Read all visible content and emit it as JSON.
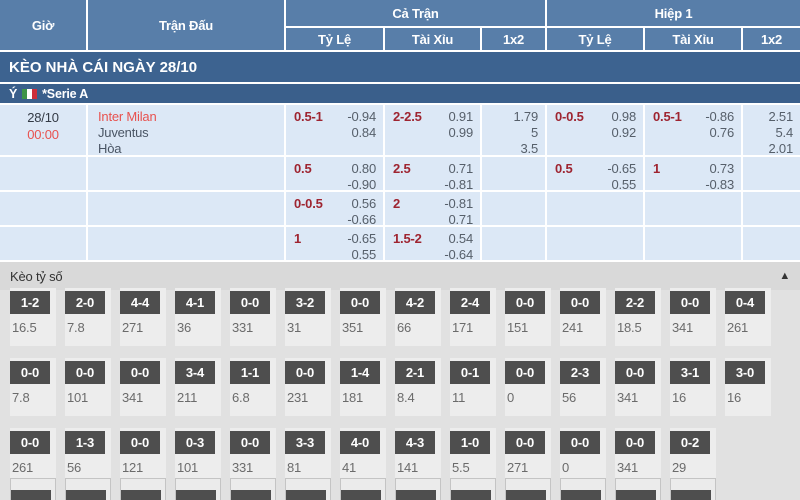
{
  "colors": {
    "header_blue": "#587ea9",
    "band_blue": "#3d6390",
    "row_bg": "#dce8f6",
    "odds_label_red": "#9e2430",
    "team_red": "#e8524f",
    "score_box_dark": "#4e4e4e"
  },
  "table": {
    "headers": {
      "gio": "Giờ",
      "tran_dau": "Trận Đấu",
      "ca_tran": "Cả Trận",
      "hiep_1": "Hiệp 1",
      "ty_le": "Tỷ Lệ",
      "tai_xiu": "Tài Xỉu",
      "one_x_two": "1x2"
    },
    "section_title": "KÈO NHÀ CÁI NGÀY 28/10",
    "league": {
      "country": "Ý",
      "flag": "italy",
      "name": "*Serie A"
    },
    "match": {
      "date": "28/10",
      "time": "00:00",
      "home": "Inter Milan",
      "away": "Juventus",
      "draw_label": "Hòa"
    },
    "odds_rows": [
      {
        "ft_hc": "0.5-1",
        "ft_hc_v1": "-0.94",
        "ft_hc_v2": "0.84",
        "ft_ou": "2-2.5",
        "ft_ou_v1": "0.91",
        "ft_ou_v2": "0.99",
        "ft_1x2": [
          "1.79",
          "5",
          "3.5"
        ],
        "h1_hc": "0-0.5",
        "h1_hc_v1": "0.98",
        "h1_hc_v2": "0.92",
        "h1_ou": "0.5-1",
        "h1_ou_v1": "-0.86",
        "h1_ou_v2": "0.76",
        "h1_1x2": [
          "2.51",
          "5.4",
          "2.01"
        ]
      },
      {
        "ft_hc": "0.5",
        "ft_hc_v1": "0.80",
        "ft_hc_v2": "-0.90",
        "ft_ou": "2.5",
        "ft_ou_v1": "0.71",
        "ft_ou_v2": "-0.81",
        "ft_1x2": [],
        "h1_hc": "0.5",
        "h1_hc_v1": "-0.65",
        "h1_hc_v2": "0.55",
        "h1_ou": "1",
        "h1_ou_v1": "0.73",
        "h1_ou_v2": "-0.83",
        "h1_1x2": []
      },
      {
        "ft_hc": "0-0.5",
        "ft_hc_v1": "0.56",
        "ft_hc_v2": "-0.66",
        "ft_ou": "2",
        "ft_ou_v1": "-0.81",
        "ft_ou_v2": "0.71",
        "ft_1x2": [],
        "h1_hc": "",
        "h1_hc_v1": "",
        "h1_hc_v2": "",
        "h1_ou": "",
        "h1_ou_v1": "",
        "h1_ou_v2": "",
        "h1_1x2": []
      },
      {
        "ft_hc": "1",
        "ft_hc_v1": "-0.65",
        "ft_hc_v2": "0.55",
        "ft_ou": "1.5-2",
        "ft_ou_v1": "0.54",
        "ft_ou_v2": "-0.64",
        "ft_1x2": [],
        "h1_hc": "",
        "h1_hc_v1": "",
        "h1_hc_v2": "",
        "h1_ou": "",
        "h1_ou_v1": "",
        "h1_ou_v2": "",
        "h1_1x2": []
      }
    ]
  },
  "score_section": {
    "title": "Kèo tỷ số",
    "collapse_icon": "▲",
    "rows": [
      [
        {
          "score": "1-2",
          "odds": "16.5"
        },
        {
          "score": "2-0",
          "odds": "7.8"
        },
        {
          "score": "4-4",
          "odds": "271"
        },
        {
          "score": "4-1",
          "odds": "36"
        },
        {
          "score": "0-0",
          "odds": "331"
        },
        {
          "score": "3-2",
          "odds": "31"
        },
        {
          "score": "0-0",
          "odds": "351"
        },
        {
          "score": "4-2",
          "odds": "66"
        },
        {
          "score": "2-4",
          "odds": "171"
        },
        {
          "score": "0-0",
          "odds": "151"
        },
        {
          "score": "0-0",
          "odds": "241"
        },
        {
          "score": "2-2",
          "odds": "18.5"
        },
        {
          "score": "0-0",
          "odds": "341"
        },
        {
          "score": "0-4",
          "odds": "261"
        }
      ],
      [
        {
          "score": "0-0",
          "odds": "7.8"
        },
        {
          "score": "0-0",
          "odds": "101"
        },
        {
          "score": "0-0",
          "odds": "341"
        },
        {
          "score": "3-4",
          "odds": "211"
        },
        {
          "score": "1-1",
          "odds": "6.8"
        },
        {
          "score": "0-0",
          "odds": "231"
        },
        {
          "score": "1-4",
          "odds": "181"
        },
        {
          "score": "2-1",
          "odds": "8.4"
        },
        {
          "score": "0-1",
          "odds": "11"
        },
        {
          "score": "0-0",
          "odds": "0"
        },
        {
          "score": "2-3",
          "odds": "56"
        },
        {
          "score": "0-0",
          "odds": "341"
        },
        {
          "score": "3-1",
          "odds": "16"
        },
        {
          "score": "3-0",
          "odds": "16"
        }
      ],
      [
        {
          "score": "0-0",
          "odds": "261"
        },
        {
          "score": "1-3",
          "odds": "56"
        },
        {
          "score": "0-0",
          "odds": "121"
        },
        {
          "score": "0-3",
          "odds": "101"
        },
        {
          "score": "0-0",
          "odds": "331"
        },
        {
          "score": "3-3",
          "odds": "81"
        },
        {
          "score": "4-0",
          "odds": "41"
        },
        {
          "score": "4-3",
          "odds": "141"
        },
        {
          "score": "1-0",
          "odds": "5.5"
        },
        {
          "score": "0-0",
          "odds": "271"
        },
        {
          "score": "0-0",
          "odds": "0"
        },
        {
          "score": "0-0",
          "odds": "341"
        },
        {
          "score": "0-2",
          "odds": "29"
        }
      ]
    ],
    "pending_scores_count": 13
  }
}
